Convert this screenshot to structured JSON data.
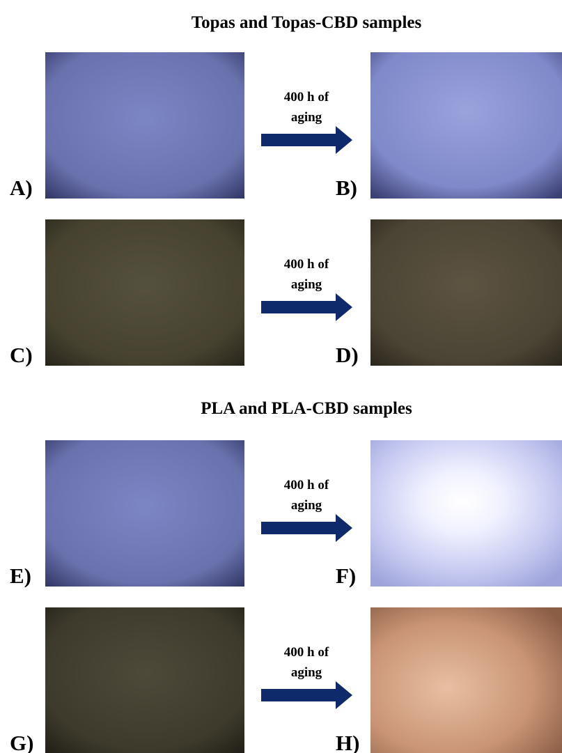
{
  "sections": [
    {
      "title": "Topas and Topas-CBD samples",
      "rows": [
        {
          "left": "A)",
          "right": "B)",
          "arrow": [
            "400 h of",
            "aging"
          ]
        },
        {
          "left": "C)",
          "right": "D)",
          "arrow": [
            "400 h of",
            "aging"
          ]
        }
      ]
    },
    {
      "title": "PLA and PLA-CBD samples",
      "rows": [
        {
          "left": "E)",
          "right": "F)",
          "arrow": [
            "400 h of",
            "aging"
          ]
        },
        {
          "left": "G)",
          "right": "H)",
          "arrow": [
            "400 h of",
            "aging"
          ]
        }
      ]
    }
  ]
}
